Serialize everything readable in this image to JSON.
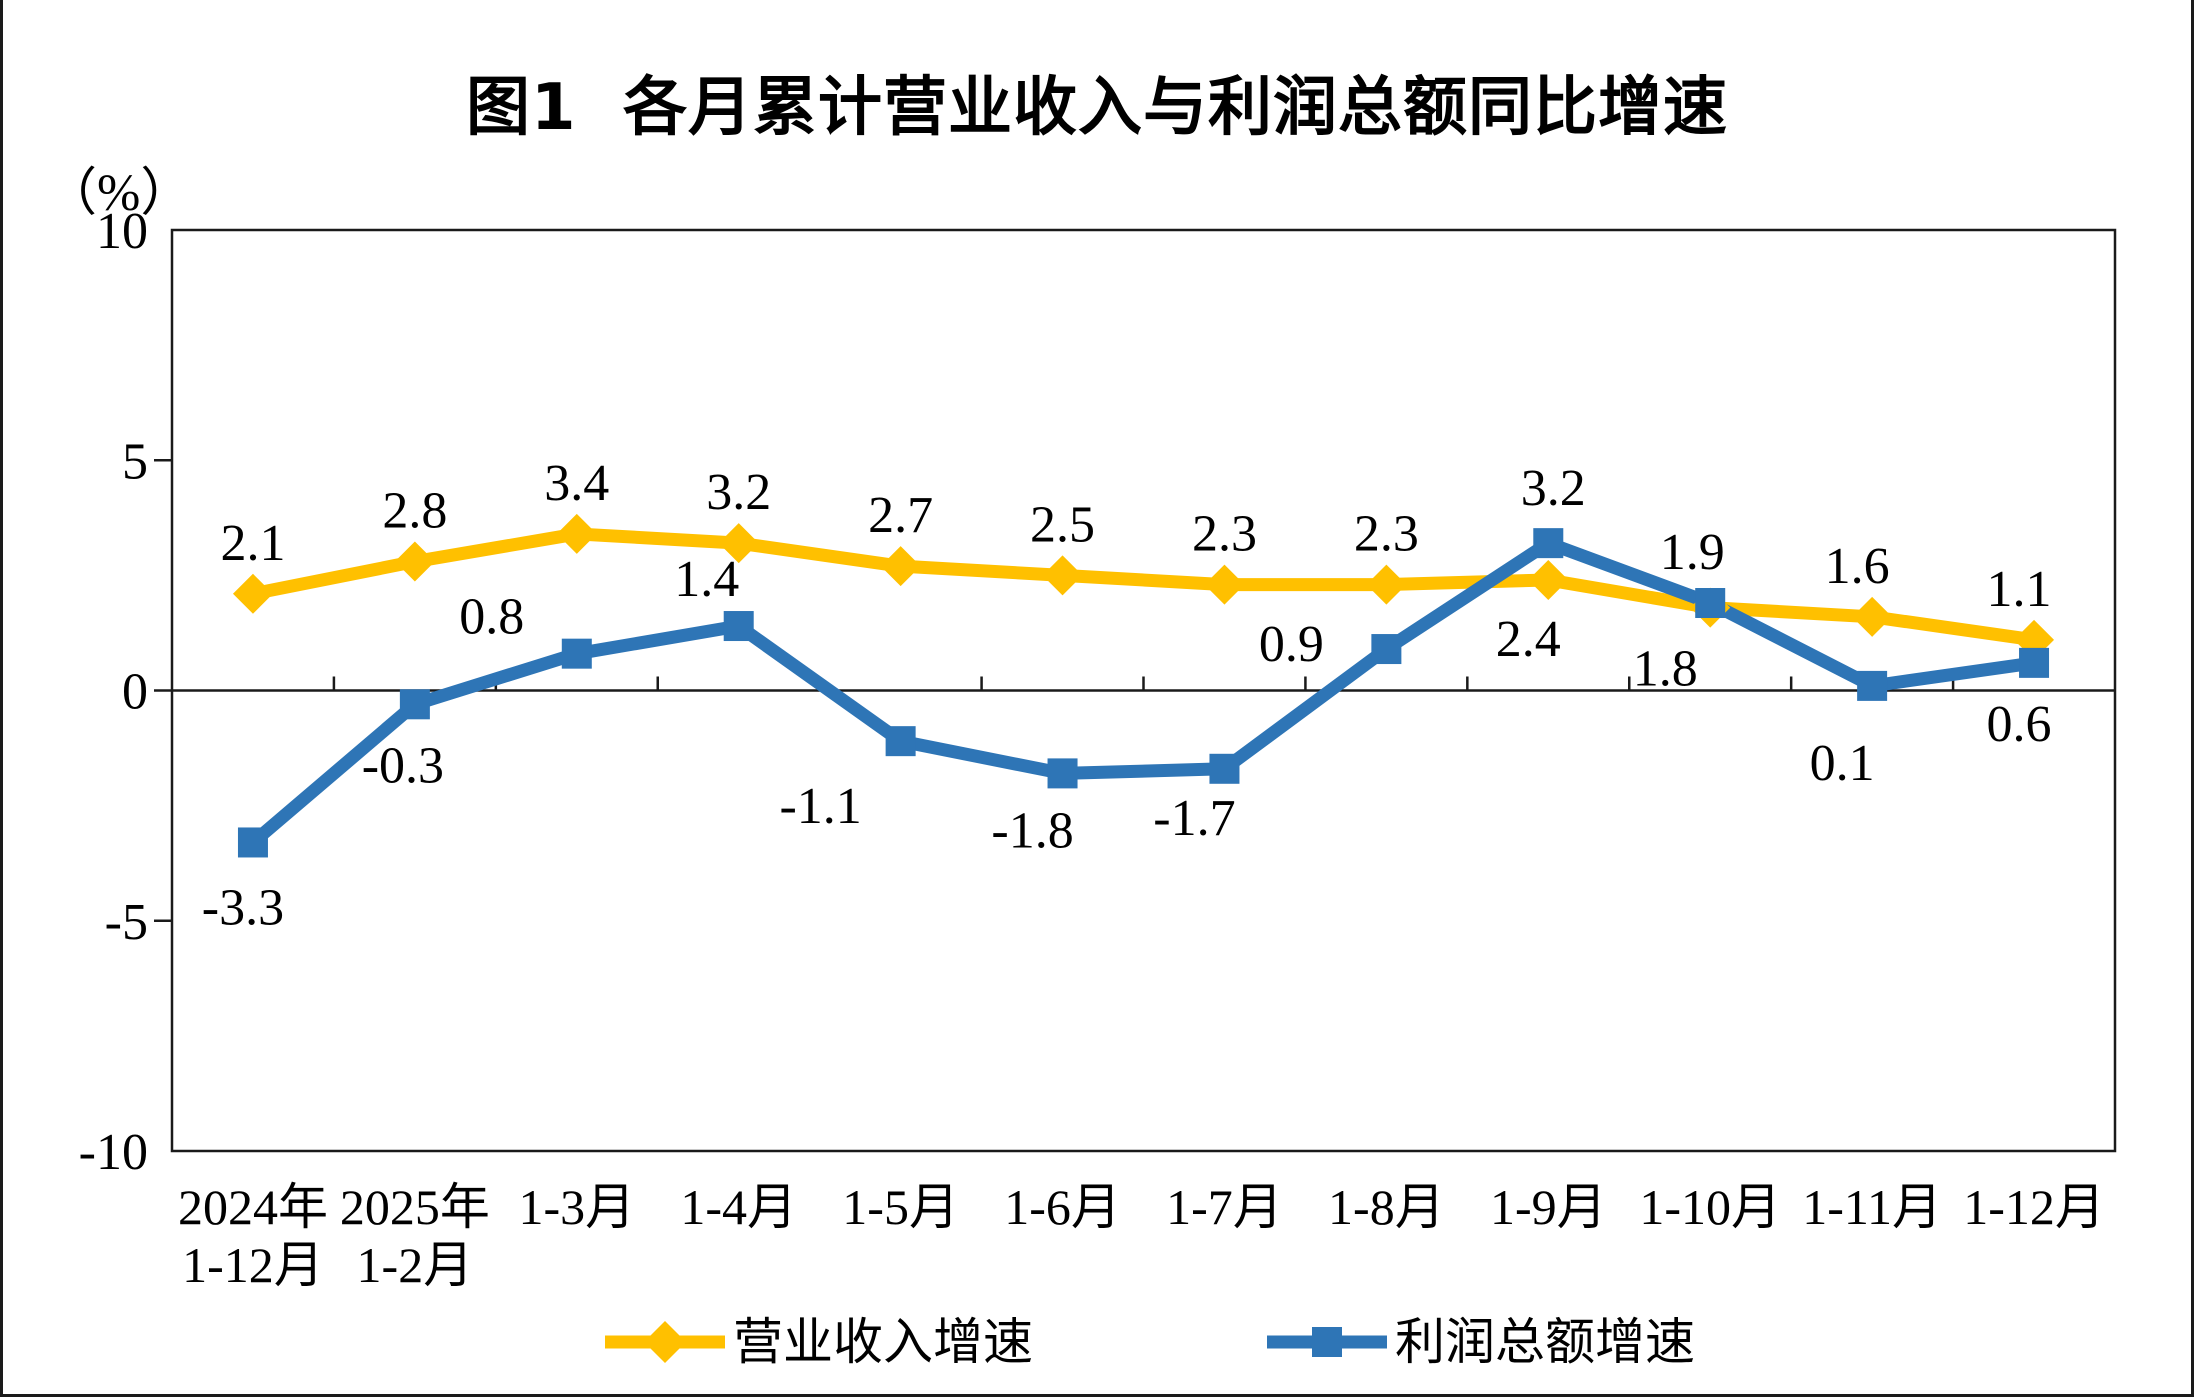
{
  "figure": {
    "title": "图1  各月累计营业收入与利润总额同比增速",
    "unit_label": "（%）"
  },
  "chart_data": {
    "type": "line",
    "title": "图1 各月累计营业收入与利润总额同比增速",
    "ylabel": "（%）",
    "ylim": [
      -10,
      10
    ],
    "ytick_interval": 5,
    "yticks": [
      10,
      5,
      0,
      -5,
      -10
    ],
    "ytick_labels": [
      "10",
      "5",
      "0",
      "-5",
      "-10"
    ],
    "grid": false,
    "legend_position": "bottom",
    "categories": [
      [
        "2024年",
        "1-12月"
      ],
      [
        "2025年",
        "1-2月"
      ],
      [
        "1-3月"
      ],
      [
        "1-4月"
      ],
      [
        "1-5月"
      ],
      [
        "1-6月"
      ],
      [
        "1-7月"
      ],
      [
        "1-8月"
      ],
      [
        "1-9月"
      ],
      [
        "1-10月"
      ],
      [
        "1-11月"
      ],
      [
        "1-12月"
      ]
    ],
    "series": [
      {
        "name": "营业收入增速",
        "color": "#FFC000",
        "marker": "diamond",
        "values": [
          2.1,
          2.8,
          3.4,
          3.2,
          2.7,
          2.5,
          2.3,
          2.3,
          2.4,
          1.8,
          1.6,
          1.1
        ],
        "label_offsets": [
          [
            0,
            -52
          ],
          [
            0,
            -52
          ],
          [
            0,
            -52
          ],
          [
            0,
            -52
          ],
          [
            0,
            -52
          ],
          [
            0,
            -52
          ],
          [
            0,
            -52
          ],
          [
            0,
            -52
          ],
          [
            -20,
            58
          ],
          [
            -45,
            60
          ],
          [
            -15,
            -52
          ],
          [
            -15,
            -52
          ]
        ]
      },
      {
        "name": "利润总额增速",
        "color": "#2E75B6",
        "marker": "square",
        "values": [
          -3.3,
          -0.3,
          0.8,
          1.4,
          -1.1,
          -1.8,
          -1.7,
          0.9,
          3.2,
          1.9,
          0.1,
          0.6
        ],
        "label_offsets": [
          [
            -10,
            64
          ],
          [
            -12,
            60
          ],
          [
            -85,
            -38
          ],
          [
            -32,
            -48
          ],
          [
            -80,
            64
          ],
          [
            -30,
            56
          ],
          [
            -30,
            48
          ],
          [
            -95,
            -6
          ],
          [
            5,
            -56
          ],
          [
            -18,
            -52
          ],
          [
            -30,
            76
          ],
          [
            -15,
            60
          ]
        ]
      }
    ]
  }
}
